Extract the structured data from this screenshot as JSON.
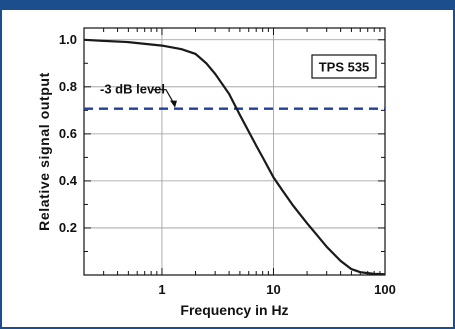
{
  "colors": {
    "frame": "#1c4d8c",
    "curve": "#1a1a1a",
    "threshold_line": "#1f3f9a",
    "grid": "#9a9a9a"
  },
  "chart_data": {
    "type": "line",
    "title": "",
    "xlabel": "Frequency in Hz",
    "ylabel": "Relative signal output",
    "x_scale": "log",
    "xlim": [
      0.2,
      100
    ],
    "ylim": [
      0,
      1.05
    ],
    "x_ticks": [
      1,
      10,
      100
    ],
    "x_tick_labels": [
      "1",
      "10",
      "100"
    ],
    "y_ticks": [
      0.2,
      0.4,
      0.6,
      0.8,
      1.0
    ],
    "y_tick_labels": [
      "0.2",
      "0.4",
      "0.6",
      "0.8",
      "1.0"
    ],
    "grid": true,
    "series": [
      {
        "x": [
          0.2,
          0.3,
          0.5,
          0.8,
          1.0,
          1.5,
          2.0,
          2.5,
          3.0,
          4.0,
          5.0,
          6.0,
          7.0,
          8.0,
          10.0,
          12.0,
          15.0,
          20.0,
          25.0,
          30.0,
          40.0,
          50.0,
          60.0,
          70.0,
          80.0,
          100.0
        ],
        "y": [
          1.0,
          0.995,
          0.99,
          0.98,
          0.975,
          0.96,
          0.94,
          0.9,
          0.855,
          0.77,
          0.68,
          0.61,
          0.55,
          0.5,
          0.415,
          0.36,
          0.295,
          0.22,
          0.165,
          0.12,
          0.06,
          0.025,
          0.012,
          0.008,
          0.005,
          0.003
        ]
      }
    ],
    "reference_line": {
      "y": 0.707,
      "label": "-3 dB level",
      "style": "dashed"
    },
    "annotations": [
      {
        "text": "TPS 535",
        "boxed": true,
        "position": "top-right"
      }
    ]
  }
}
